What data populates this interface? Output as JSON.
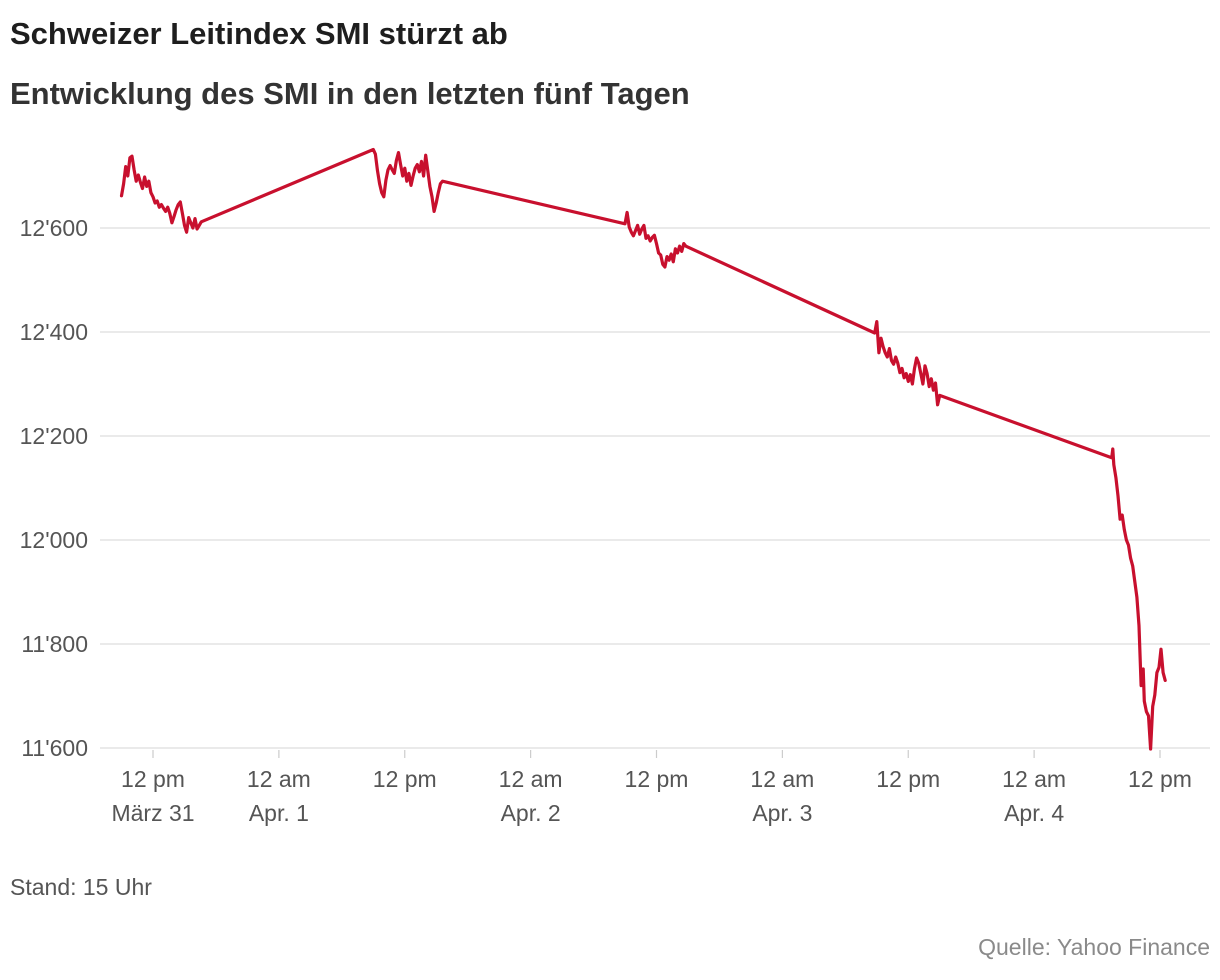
{
  "chart_data": {
    "type": "line",
    "title": "Schweizer Leitindex SMI stürzt ab",
    "subtitle": "Entwicklung des SMI in den letzten fünf Tagen",
    "xlabel": "",
    "ylabel": "",
    "ylim": [
      11600,
      12800
    ],
    "grid": true,
    "y_ticks": [
      {
        "value": 11600,
        "label": "11'600"
      },
      {
        "value": 11800,
        "label": "11'800"
      },
      {
        "value": 12000,
        "label": "12'000"
      },
      {
        "value": 12200,
        "label": "12'200"
      },
      {
        "value": 12400,
        "label": "12'400"
      },
      {
        "value": 12600,
        "label": "12'600"
      }
    ],
    "x_ticks": [
      {
        "hour": 12,
        "line1": "12 pm",
        "line2": "März 31"
      },
      {
        "hour": 24,
        "line1": "12 am",
        "line2": "Apr. 1"
      },
      {
        "hour": 36,
        "line1": "12 pm",
        "line2": ""
      },
      {
        "hour": 48,
        "line1": "12 am",
        "line2": "Apr. 2"
      },
      {
        "hour": 60,
        "line1": "12 pm",
        "line2": ""
      },
      {
        "hour": 72,
        "line1": "12 am",
        "line2": "Apr. 3"
      },
      {
        "hour": 84,
        "line1": "12 pm",
        "line2": ""
      },
      {
        "hour": 96,
        "line1": "12 am",
        "line2": "Apr. 4"
      },
      {
        "hour": 108,
        "line1": "12 pm",
        "line2": ""
      }
    ],
    "series": [
      {
        "name": "SMI",
        "color": "#c8102e",
        "x_unit": "hours since 31 March 00:00",
        "points": [
          [
            9.0,
            12662
          ],
          [
            9.2,
            12685
          ],
          [
            9.4,
            12718
          ],
          [
            9.6,
            12700
          ],
          [
            9.8,
            12735
          ],
          [
            10.0,
            12738
          ],
          [
            10.2,
            12712
          ],
          [
            10.4,
            12690
          ],
          [
            10.6,
            12702
          ],
          [
            10.8,
            12688
          ],
          [
            11.0,
            12676
          ],
          [
            11.2,
            12698
          ],
          [
            11.4,
            12680
          ],
          [
            11.6,
            12690
          ],
          [
            11.8,
            12668
          ],
          [
            12.0,
            12660
          ],
          [
            12.2,
            12648
          ],
          [
            12.4,
            12652
          ],
          [
            12.6,
            12640
          ],
          [
            12.8,
            12645
          ],
          [
            13.0,
            12638
          ],
          [
            13.2,
            12632
          ],
          [
            13.4,
            12640
          ],
          [
            13.6,
            12628
          ],
          [
            13.8,
            12610
          ],
          [
            14.0,
            12622
          ],
          [
            14.2,
            12635
          ],
          [
            14.4,
            12645
          ],
          [
            14.6,
            12650
          ],
          [
            14.8,
            12628
          ],
          [
            15.0,
            12605
          ],
          [
            15.2,
            12592
          ],
          [
            15.4,
            12620
          ],
          [
            15.6,
            12610
          ],
          [
            15.8,
            12600
          ],
          [
            16.0,
            12618
          ],
          [
            16.2,
            12598
          ],
          [
            16.4,
            12605
          ],
          [
            16.6,
            12612
          ],
          [
            33.0,
            12751
          ],
          [
            33.2,
            12742
          ],
          [
            33.4,
            12710
          ],
          [
            33.6,
            12685
          ],
          [
            33.8,
            12668
          ],
          [
            34.0,
            12660
          ],
          [
            34.2,
            12692
          ],
          [
            34.4,
            12712
          ],
          [
            34.6,
            12720
          ],
          [
            34.8,
            12712
          ],
          [
            35.0,
            12705
          ],
          [
            35.2,
            12730
          ],
          [
            35.4,
            12745
          ],
          [
            35.6,
            12722
          ],
          [
            35.8,
            12700
          ],
          [
            36.0,
            12715
          ],
          [
            36.2,
            12690
          ],
          [
            36.4,
            12705
          ],
          [
            36.6,
            12682
          ],
          [
            36.8,
            12700
          ],
          [
            37.0,
            12715
          ],
          [
            37.2,
            12722
          ],
          [
            37.4,
            12708
          ],
          [
            37.6,
            12728
          ],
          [
            37.8,
            12700
          ],
          [
            38.0,
            12740
          ],
          [
            38.2,
            12710
          ],
          [
            38.4,
            12680
          ],
          [
            38.6,
            12660
          ],
          [
            38.8,
            12632
          ],
          [
            39.0,
            12648
          ],
          [
            39.2,
            12668
          ],
          [
            39.4,
            12685
          ],
          [
            39.6,
            12690
          ],
          [
            57.0,
            12608
          ],
          [
            57.2,
            12630
          ],
          [
            57.4,
            12602
          ],
          [
            57.6,
            12592
          ],
          [
            57.8,
            12585
          ],
          [
            58.0,
            12595
          ],
          [
            58.2,
            12605
          ],
          [
            58.4,
            12588
          ],
          [
            58.6,
            12598
          ],
          [
            58.8,
            12605
          ],
          [
            59.0,
            12580
          ],
          [
            59.2,
            12585
          ],
          [
            59.4,
            12575
          ],
          [
            59.6,
            12582
          ],
          [
            59.8,
            12586
          ],
          [
            60.0,
            12570
          ],
          [
            60.2,
            12552
          ],
          [
            60.4,
            12548
          ],
          [
            60.6,
            12530
          ],
          [
            60.8,
            12525
          ],
          [
            61.0,
            12545
          ],
          [
            61.2,
            12538
          ],
          [
            61.4,
            12550
          ],
          [
            61.6,
            12535
          ],
          [
            61.8,
            12560
          ],
          [
            62.0,
            12552
          ],
          [
            62.2,
            12565
          ],
          [
            62.4,
            12555
          ],
          [
            62.6,
            12570
          ],
          [
            62.8,
            12565
          ],
          [
            80.8,
            12398
          ],
          [
            81.0,
            12420
          ],
          [
            81.2,
            12360
          ],
          [
            81.4,
            12388
          ],
          [
            81.6,
            12372
          ],
          [
            81.8,
            12360
          ],
          [
            82.0,
            12352
          ],
          [
            82.2,
            12368
          ],
          [
            82.4,
            12345
          ],
          [
            82.6,
            12338
          ],
          [
            82.8,
            12352
          ],
          [
            83.0,
            12340
          ],
          [
            83.2,
            12322
          ],
          [
            83.4,
            12330
          ],
          [
            83.6,
            12312
          ],
          [
            83.8,
            12320
          ],
          [
            84.0,
            12305
          ],
          [
            84.2,
            12318
          ],
          [
            84.4,
            12300
          ],
          [
            84.6,
            12330
          ],
          [
            84.8,
            12350
          ],
          [
            85.0,
            12340
          ],
          [
            85.2,
            12320
          ],
          [
            85.4,
            12300
          ],
          [
            85.6,
            12335
          ],
          [
            85.8,
            12320
          ],
          [
            86.0,
            12295
          ],
          [
            86.2,
            12310
          ],
          [
            86.4,
            12288
          ],
          [
            86.6,
            12302
          ],
          [
            86.8,
            12260
          ],
          [
            87.0,
            12278
          ],
          [
            103.4,
            12158
          ],
          [
            103.5,
            12175
          ],
          [
            103.6,
            12145
          ],
          [
            103.8,
            12120
          ],
          [
            104.0,
            12085
          ],
          [
            104.2,
            12040
          ],
          [
            104.4,
            12048
          ],
          [
            104.6,
            12020
          ],
          [
            104.8,
            12000
          ],
          [
            105.0,
            11990
          ],
          [
            105.2,
            11965
          ],
          [
            105.4,
            11950
          ],
          [
            105.6,
            11920
          ],
          [
            105.8,
            11890
          ],
          [
            106.0,
            11835
          ],
          [
            106.1,
            11775
          ],
          [
            106.2,
            11720
          ],
          [
            106.4,
            11752
          ],
          [
            106.5,
            11690
          ],
          [
            106.7,
            11670
          ],
          [
            106.9,
            11662
          ],
          [
            107.1,
            11598
          ],
          [
            107.3,
            11680
          ],
          [
            107.5,
            11702
          ],
          [
            107.7,
            11745
          ],
          [
            107.9,
            11755
          ],
          [
            108.1,
            11790
          ],
          [
            108.3,
            11745
          ],
          [
            108.5,
            11730
          ]
        ]
      }
    ]
  },
  "footer": {
    "note": "Stand: 15 Uhr",
    "source": "Quelle: Yahoo Finance"
  }
}
